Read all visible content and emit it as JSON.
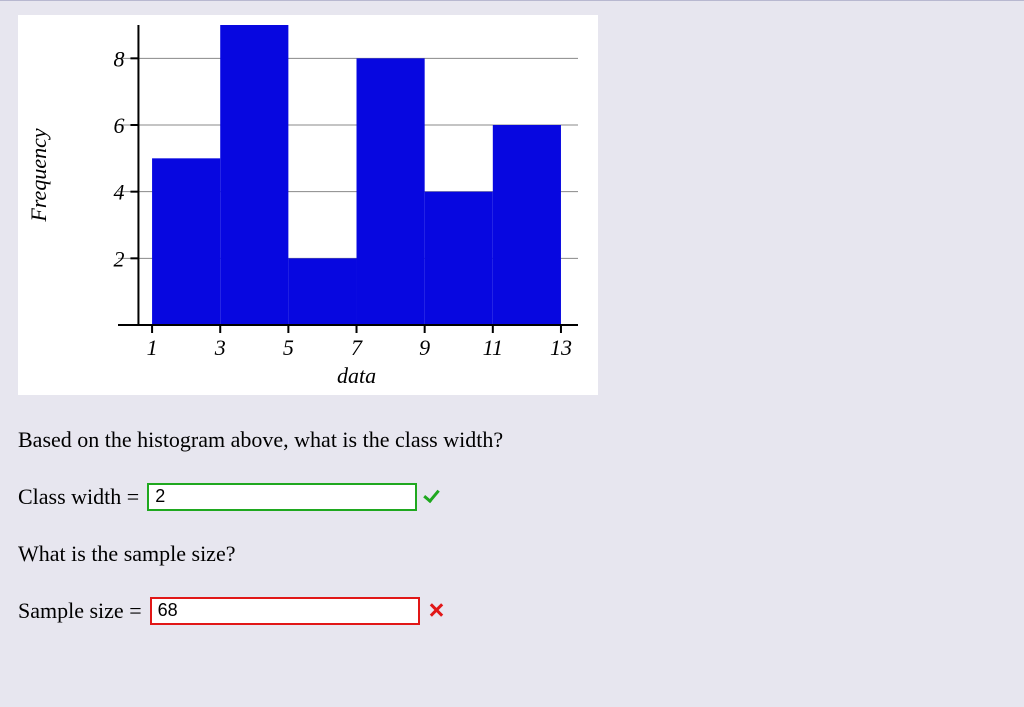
{
  "chart": {
    "type": "histogram",
    "background_color": "#ffffff",
    "bar_color": "#0707e0",
    "axis_color": "#000000",
    "grid_color": "#888888",
    "grid_width": 1,
    "xlabel": "data",
    "ylabel": "Frequency",
    "label_fontsize": 22,
    "tick_fontsize": 22,
    "x_ticks": [
      1,
      3,
      5,
      7,
      9,
      11,
      13
    ],
    "y_ticks": [
      2,
      4,
      6,
      8
    ],
    "xlim": [
      0,
      13.5
    ],
    "ylim": [
      0,
      9
    ],
    "bars": [
      {
        "x0": 1,
        "x1": 3,
        "y": 5
      },
      {
        "x0": 3,
        "x1": 5,
        "y": 9
      },
      {
        "x0": 5,
        "x1": 7,
        "y": 2
      },
      {
        "x0": 7,
        "x1": 9,
        "y": 8
      },
      {
        "x0": 9,
        "x1": 11,
        "y": 4
      },
      {
        "x0": 11,
        "x1": 13,
        "y": 6
      }
    ]
  },
  "question1": "Based on the histogram above, what is the class width?",
  "answer1": {
    "label": "Class width =",
    "value": "2",
    "status": "correct"
  },
  "question2": "What is the sample size?",
  "answer2": {
    "label": "Sample size =",
    "value": "68",
    "status": "wrong"
  }
}
